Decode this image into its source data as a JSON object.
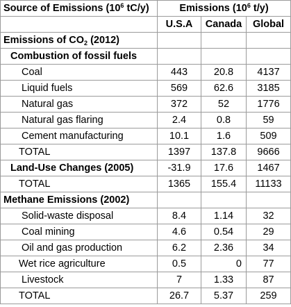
{
  "header": {
    "source_label": "Source of Emissions (10",
    "source_exp": "6",
    "source_unit": " tC/y)",
    "emissions_label": "Emissions (10",
    "emissions_exp": "6",
    "emissions_unit": " t/y)",
    "col_usa": "U.S.A",
    "col_canada": "Canada",
    "col_global": "Global"
  },
  "sections": {
    "co2_title_a": "Emissions of CO",
    "co2_title_sub": "2",
    "co2_title_b": " (2012)",
    "fossil_title": "Combustion of fossil fuels",
    "fossil_rows": [
      {
        "label": "Coal",
        "usa": "443",
        "canada": "20.8",
        "global": "4137"
      },
      {
        "label": "Liquid fuels",
        "usa": "569",
        "canada": "62.6",
        "global": "3185"
      },
      {
        "label": "Natural gas",
        "usa": "372",
        "canada": "52",
        "global": "1776"
      },
      {
        "label": "Natural gas flaring",
        "usa": "2.4",
        "canada": "0.8",
        "global": "59"
      },
      {
        "label": "Cement manufacturing",
        "usa": "10.1",
        "canada": "1.6",
        "global": "509"
      },
      {
        "label": "TOTAL",
        "usa": "1397",
        "canada": "137.8",
        "global": "9666"
      }
    ],
    "landuse_row": {
      "label": "Land-Use Changes (2005)",
      "usa": "-31.9",
      "canada": "17.6",
      "global": "1467"
    },
    "co2_total_row": {
      "label": "TOTAL",
      "usa": "1365",
      "canada": "155.4",
      "global": "11133"
    },
    "methane_title": "Methane Emissions (2002)",
    "methane_rows": [
      {
        "label": "Solid-waste disposal",
        "usa": "8.4",
        "canada": "1.14",
        "global": "32"
      },
      {
        "label": "Coal mining",
        "usa": "4.6",
        "canada": "0.54",
        "global": "29"
      },
      {
        "label": "Oil and gas production",
        "usa": "6.2",
        "canada": "2.36",
        "global": "34"
      },
      {
        "label": "Wet rice agriculture",
        "usa": "0.5",
        "canada": "0",
        "global": "77"
      },
      {
        "label": "Livestock",
        "usa": "7",
        "canada": "1.33",
        "global": "87"
      },
      {
        "label": "TOTAL",
        "usa": "26.7",
        "canada": "5.37",
        "global": "259"
      }
    ]
  }
}
